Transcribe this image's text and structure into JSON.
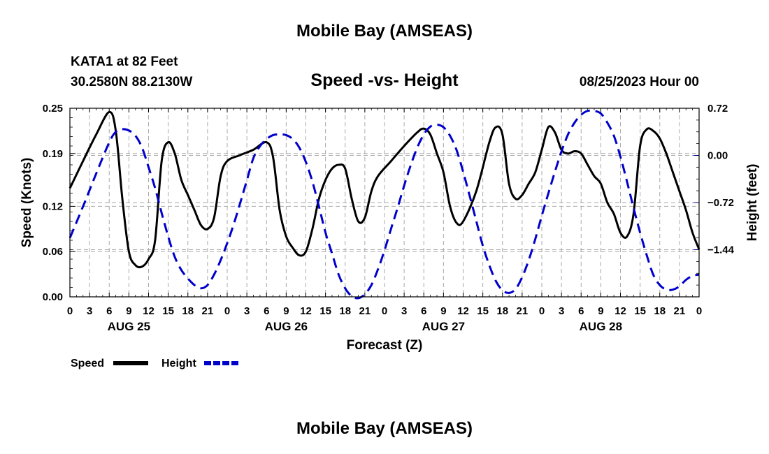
{
  "header": {
    "title": "Mobile Bay (AMSEAS)",
    "station": "KATA1 at 82 Feet",
    "coords": "30.2580N  88.2130W",
    "subtitle": "Speed -vs- Height",
    "run_time": "08/25/2023 Hour 00"
  },
  "footer": {
    "title": "Mobile Bay (AMSEAS)"
  },
  "chart_data": {
    "type": "line",
    "xlabel": "Forecast (Z)",
    "ylabel_left": "Speed (Knots)",
    "ylabel_right": "Height (feet)",
    "x_range_hours": [
      0,
      96
    ],
    "x_tick_step_hours": 3,
    "x_tick_labels": [
      "0",
      "3",
      "6",
      "9",
      "12",
      "15",
      "18",
      "21",
      "0",
      "3",
      "6",
      "9",
      "12",
      "15",
      "18",
      "21",
      "0",
      "3",
      "6",
      "9",
      "12",
      "15",
      "18",
      "21",
      "0",
      "3",
      "6",
      "9",
      "12",
      "15",
      "18",
      "21",
      "0"
    ],
    "date_labels": [
      {
        "label": "AUG 25",
        "hour": 9
      },
      {
        "label": "AUG 26",
        "hour": 33
      },
      {
        "label": "AUG 27",
        "hour": 57
      },
      {
        "label": "AUG 28",
        "hour": 81
      }
    ],
    "y_left": {
      "range": [
        0,
        0.25
      ],
      "ticks": [
        0.0,
        0.06,
        0.12,
        0.19,
        0.25
      ],
      "tick_labels": [
        "0.00",
        "0.06",
        "0.12",
        "0.19",
        "0.25"
      ]
    },
    "y_right": {
      "range": [
        -2.16,
        0.72
      ],
      "ticks": [
        -1.44,
        -0.72,
        0.0,
        0.72
      ],
      "tick_labels": [
        "−1.44",
        "−0.72",
        "0.00",
        "0.72"
      ]
    },
    "grid": true,
    "legend_position": "bottom-left",
    "series": [
      {
        "name": "Speed",
        "axis": "left",
        "color": "#000000",
        "style": "solid",
        "points": [
          [
            0,
            0.144
          ],
          [
            2,
            0.18
          ],
          [
            4,
            0.215
          ],
          [
            6,
            0.245
          ],
          [
            7,
            0.22
          ],
          [
            8,
            0.13
          ],
          [
            9,
            0.06
          ],
          [
            10,
            0.042
          ],
          [
            11,
            0.04
          ],
          [
            12,
            0.05
          ],
          [
            13,
            0.075
          ],
          [
            14,
            0.18
          ],
          [
            15,
            0.205
          ],
          [
            16,
            0.19
          ],
          [
            17,
            0.155
          ],
          [
            18,
            0.135
          ],
          [
            19,
            0.115
          ],
          [
            20,
            0.095
          ],
          [
            21,
            0.09
          ],
          [
            22,
            0.105
          ],
          [
            23,
            0.16
          ],
          [
            24,
            0.18
          ],
          [
            26,
            0.188
          ],
          [
            28,
            0.195
          ],
          [
            30,
            0.205
          ],
          [
            31,
            0.185
          ],
          [
            32,
            0.115
          ],
          [
            33,
            0.08
          ],
          [
            34,
            0.065
          ],
          [
            35,
            0.055
          ],
          [
            36,
            0.06
          ],
          [
            37,
            0.09
          ],
          [
            38,
            0.13
          ],
          [
            39,
            0.155
          ],
          [
            40,
            0.17
          ],
          [
            41,
            0.175
          ],
          [
            42,
            0.17
          ],
          [
            43,
            0.13
          ],
          [
            44,
            0.1
          ],
          [
            45,
            0.105
          ],
          [
            46,
            0.14
          ],
          [
            47,
            0.16
          ],
          [
            49,
            0.18
          ],
          [
            51,
            0.2
          ],
          [
            53,
            0.218
          ],
          [
            54,
            0.223
          ],
          [
            55,
            0.215
          ],
          [
            56,
            0.19
          ],
          [
            57,
            0.165
          ],
          [
            58,
            0.12
          ],
          [
            59,
            0.098
          ],
          [
            60,
            0.1
          ],
          [
            62,
            0.14
          ],
          [
            64,
            0.205
          ],
          [
            65,
            0.225
          ],
          [
            66,
            0.215
          ],
          [
            67,
            0.15
          ],
          [
            68,
            0.13
          ],
          [
            69,
            0.135
          ],
          [
            70,
            0.15
          ],
          [
            71,
            0.165
          ],
          [
            72,
            0.195
          ],
          [
            73,
            0.225
          ],
          [
            74,
            0.218
          ],
          [
            75,
            0.195
          ],
          [
            76,
            0.19
          ],
          [
            77,
            0.193
          ],
          [
            78,
            0.19
          ],
          [
            79,
            0.175
          ],
          [
            80,
            0.16
          ],
          [
            81,
            0.15
          ],
          [
            82,
            0.125
          ],
          [
            83,
            0.11
          ],
          [
            84,
            0.085
          ],
          [
            85,
            0.08
          ],
          [
            86,
            0.11
          ],
          [
            87,
            0.2
          ],
          [
            88,
            0.222
          ],
          [
            89,
            0.22
          ],
          [
            90,
            0.21
          ],
          [
            91,
            0.19
          ],
          [
            92,
            0.165
          ],
          [
            93,
            0.14
          ],
          [
            94,
            0.115
          ],
          [
            95,
            0.085
          ],
          [
            96,
            0.063
          ]
        ]
      },
      {
        "name": "Height",
        "axis": "right",
        "color": "#0000cc",
        "style": "dashed",
        "points": [
          [
            0,
            -1.26
          ],
          [
            2,
            -0.78
          ],
          [
            4,
            -0.28
          ],
          [
            6,
            0.2
          ],
          [
            7,
            0.36
          ],
          [
            8,
            0.4
          ],
          [
            9,
            0.38
          ],
          [
            10,
            0.3
          ],
          [
            11,
            0.12
          ],
          [
            12,
            -0.18
          ],
          [
            13,
            -0.5
          ],
          [
            14,
            -0.88
          ],
          [
            15,
            -1.24
          ],
          [
            16,
            -1.55
          ],
          [
            17,
            -1.75
          ],
          [
            18,
            -1.88
          ],
          [
            19,
            -1.98
          ],
          [
            20,
            -2.03
          ],
          [
            21,
            -1.98
          ],
          [
            22,
            -1.82
          ],
          [
            23,
            -1.6
          ],
          [
            24,
            -1.34
          ],
          [
            25,
            -1.05
          ],
          [
            26,
            -0.72
          ],
          [
            27,
            -0.38
          ],
          [
            28,
            -0.04
          ],
          [
            29,
            0.14
          ],
          [
            30,
            0.25
          ],
          [
            31,
            0.31
          ],
          [
            32,
            0.32
          ],
          [
            33,
            0.31
          ],
          [
            34,
            0.25
          ],
          [
            35,
            0.12
          ],
          [
            36,
            -0.1
          ],
          [
            37,
            -0.4
          ],
          [
            38,
            -0.78
          ],
          [
            39,
            -1.18
          ],
          [
            40,
            -1.5
          ],
          [
            41,
            -1.82
          ],
          [
            42,
            -2.03
          ],
          [
            43,
            -2.15
          ],
          [
            44,
            -2.18
          ],
          [
            45,
            -2.12
          ],
          [
            46,
            -1.98
          ],
          [
            47,
            -1.74
          ],
          [
            48,
            -1.45
          ],
          [
            49,
            -1.12
          ],
          [
            50,
            -0.8
          ],
          [
            51,
            -0.46
          ],
          [
            52,
            -0.15
          ],
          [
            53,
            0.12
          ],
          [
            54,
            0.32
          ],
          [
            55,
            0.44
          ],
          [
            56,
            0.47
          ],
          [
            57,
            0.43
          ],
          [
            58,
            0.3
          ],
          [
            59,
            0.08
          ],
          [
            60,
            -0.25
          ],
          [
            61,
            -0.62
          ],
          [
            62,
            -1.0
          ],
          [
            63,
            -1.38
          ],
          [
            64,
            -1.68
          ],
          [
            65,
            -1.92
          ],
          [
            66,
            -2.06
          ],
          [
            67,
            -2.1
          ],
          [
            68,
            -2.04
          ],
          [
            69,
            -1.86
          ],
          [
            70,
            -1.6
          ],
          [
            71,
            -1.28
          ],
          [
            72,
            -0.92
          ],
          [
            73,
            -0.58
          ],
          [
            74,
            -0.25
          ],
          [
            75,
            0.06
          ],
          [
            76,
            0.32
          ],
          [
            77,
            0.5
          ],
          [
            78,
            0.62
          ],
          [
            79,
            0.68
          ],
          [
            80,
            0.68
          ],
          [
            81,
            0.64
          ],
          [
            82,
            0.5
          ],
          [
            83,
            0.3
          ],
          [
            84,
            -0.02
          ],
          [
            85,
            -0.4
          ],
          [
            86,
            -0.8
          ],
          [
            87,
            -1.18
          ],
          [
            88,
            -1.52
          ],
          [
            89,
            -1.82
          ],
          [
            90,
            -1.98
          ],
          [
            91,
            -2.05
          ],
          [
            92,
            -2.05
          ],
          [
            93,
            -2.0
          ],
          [
            94,
            -1.9
          ],
          [
            95,
            -1.84
          ],
          [
            96,
            -1.82
          ]
        ]
      }
    ]
  }
}
